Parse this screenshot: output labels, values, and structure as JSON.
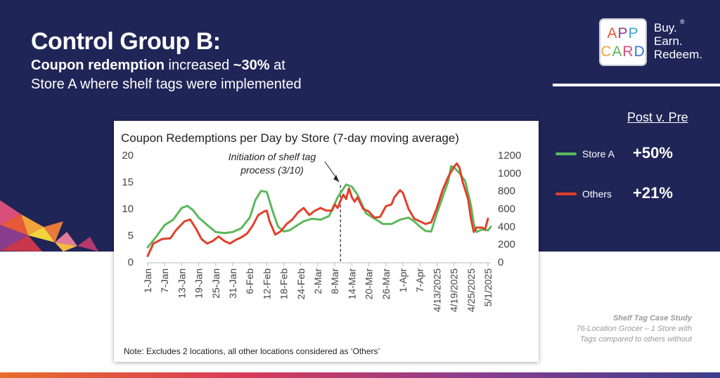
{
  "header": {
    "title": "Control Group B:",
    "sub_bold1": "Coupon redemption",
    "sub_text1": " increased ",
    "sub_bold2": "~30%",
    "sub_text2": " at Store A where shelf tags were implemented"
  },
  "logo": {
    "line1": "APP",
    "line2": "CARD",
    "tagline": [
      "Buy.",
      "Earn.",
      "Redeem."
    ],
    "registered": "®"
  },
  "post_v_pre": {
    "title": "Post v. Pre",
    "items": [
      {
        "label": "Store A",
        "value": "+50%",
        "color": "#5cb85c"
      },
      {
        "label": "Others",
        "value": "+21%",
        "color": "#e0402a"
      }
    ]
  },
  "case_study": {
    "title": "Shelf Tag Case Study",
    "line1": "76-Location Grocer – 1 Store with",
    "line2": "Tags compared to others without"
  },
  "chart_data": {
    "type": "line",
    "title": "Coupon Redemptions per Day by Store (7-day moving average)",
    "note": "Note: Excludes 2 locations, all other locations considered as ‘Others’",
    "annotation": {
      "line1": "Initiation of shelf tag",
      "line2": "process (3/10)",
      "x_index": 68
    },
    "left_axis": {
      "ticks": [
        0,
        5,
        10,
        15,
        20
      ],
      "ylim": [
        0,
        20
      ],
      "series": "Store A"
    },
    "right_axis": {
      "ticks": [
        0,
        200,
        400,
        600,
        800,
        1000,
        1200
      ],
      "ylim": [
        0,
        1200
      ],
      "series": "Others"
    },
    "x_tick_labels": [
      "1-Jan",
      "7-Jan",
      "13-Jan",
      "19-Jan",
      "25-Jan",
      "31-Jan",
      "6-Feb",
      "12-Feb",
      "18-Feb",
      "24-Feb",
      "2-Mar",
      "8-Mar",
      "14-Mar",
      "20-Mar",
      "26-Mar",
      "1-Apr",
      "7-Apr",
      "4/13/2025",
      "4/19/2025",
      "4/25/2025",
      "5/1/2025"
    ],
    "x_tick_index": [
      0,
      6,
      12,
      18,
      24,
      30,
      36,
      42,
      48,
      54,
      60,
      66,
      72,
      78,
      84,
      90,
      96,
      102,
      108,
      114,
      120
    ],
    "series": [
      {
        "name": "Store A",
        "axis": "left",
        "color": "#5cb85c",
        "points": [
          [
            0,
            2.6
          ],
          [
            3,
            4.6
          ],
          [
            6,
            6.8
          ],
          [
            9,
            7.8
          ],
          [
            12,
            10.0
          ],
          [
            14,
            10.4
          ],
          [
            16,
            9.6
          ],
          [
            18,
            8.2
          ],
          [
            21,
            6.8
          ],
          [
            24,
            5.5
          ],
          [
            27,
            5.3
          ],
          [
            30,
            5.5
          ],
          [
            33,
            6.2
          ],
          [
            36,
            8.2
          ],
          [
            38,
            11.5
          ],
          [
            40,
            13.2
          ],
          [
            42,
            13.0
          ],
          [
            44,
            9.5
          ],
          [
            46,
            6.5
          ],
          [
            48,
            5.6
          ],
          [
            50,
            5.8
          ],
          [
            52,
            6.5
          ],
          [
            55,
            7.5
          ],
          [
            58,
            8.0
          ],
          [
            61,
            7.8
          ],
          [
            64,
            8.5
          ],
          [
            67,
            12.0
          ],
          [
            70,
            14.4
          ],
          [
            72,
            14.0
          ],
          [
            74,
            12.5
          ],
          [
            77,
            9.0
          ],
          [
            80,
            8.0
          ],
          [
            83,
            7.0
          ],
          [
            86,
            7.0
          ],
          [
            89,
            7.8
          ],
          [
            92,
            8.2
          ],
          [
            94,
            7.5
          ],
          [
            96,
            6.5
          ],
          [
            98,
            5.7
          ],
          [
            100,
            5.6
          ],
          [
            102,
            9.0
          ],
          [
            104,
            12.0
          ],
          [
            106,
            15.0
          ],
          [
            107,
            17.8
          ],
          [
            108,
            17.6
          ],
          [
            110,
            16.5
          ],
          [
            112,
            15.0
          ],
          [
            114,
            10.5
          ],
          [
            115,
            7.0
          ],
          [
            116,
            5.5
          ],
          [
            118,
            6.0
          ],
          [
            120,
            5.8
          ],
          [
            121,
            6.5
          ]
        ]
      },
      {
        "name": "Others",
        "axis": "right",
        "color": "#e0402a",
        "points": [
          [
            0,
            60
          ],
          [
            2,
            200
          ],
          [
            5,
            250
          ],
          [
            8,
            260
          ],
          [
            10,
            350
          ],
          [
            13,
            450
          ],
          [
            15,
            470
          ],
          [
            17,
            370
          ],
          [
            19,
            250
          ],
          [
            21,
            200
          ],
          [
            23,
            230
          ],
          [
            25,
            280
          ],
          [
            27,
            230
          ],
          [
            29,
            200
          ],
          [
            31,
            240
          ],
          [
            33,
            270
          ],
          [
            35,
            310
          ],
          [
            37,
            400
          ],
          [
            39,
            520
          ],
          [
            41,
            560
          ],
          [
            42,
            570
          ],
          [
            43,
            450
          ],
          [
            45,
            300
          ],
          [
            47,
            340
          ],
          [
            49,
            420
          ],
          [
            51,
            470
          ],
          [
            53,
            550
          ],
          [
            55,
            600
          ],
          [
            57,
            520
          ],
          [
            59,
            570
          ],
          [
            61,
            600
          ],
          [
            63,
            570
          ],
          [
            65,
            570
          ],
          [
            66,
            640
          ],
          [
            67,
            600
          ],
          [
            68,
            680
          ],
          [
            69,
            750
          ],
          [
            70,
            700
          ],
          [
            71,
            820
          ],
          [
            72,
            720
          ],
          [
            73,
            670
          ],
          [
            74,
            720
          ],
          [
            76,
            590
          ],
          [
            78,
            560
          ],
          [
            80,
            490
          ],
          [
            82,
            500
          ],
          [
            84,
            620
          ],
          [
            86,
            640
          ],
          [
            87,
            720
          ],
          [
            89,
            800
          ],
          [
            90,
            770
          ],
          [
            92,
            590
          ],
          [
            94,
            480
          ],
          [
            96,
            450
          ],
          [
            98,
            420
          ],
          [
            100,
            440
          ],
          [
            102,
            600
          ],
          [
            104,
            800
          ],
          [
            106,
            950
          ],
          [
            108,
            1060
          ],
          [
            109,
            1100
          ],
          [
            110,
            1050
          ],
          [
            111,
            900
          ],
          [
            113,
            700
          ],
          [
            114,
            480
          ],
          [
            115,
            330
          ],
          [
            116,
            380
          ],
          [
            118,
            380
          ],
          [
            119,
            360
          ],
          [
            120,
            480
          ]
        ]
      }
    ]
  }
}
